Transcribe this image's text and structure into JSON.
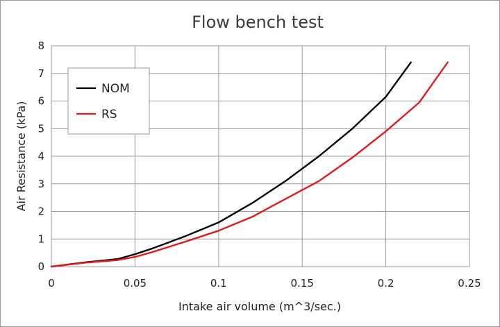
{
  "chart_data": {
    "type": "line",
    "title": "Flow bench test",
    "xlabel": "Intake air volume (m^3/sec.)",
    "ylabel": "Air Resistance (kPa)",
    "xlim": [
      0,
      0.25
    ],
    "ylim": [
      0,
      8
    ],
    "xticks": [
      0,
      0.05,
      0.1,
      0.15,
      0.2,
      0.25
    ],
    "xtick_labels": [
      "0",
      "0.05",
      "0.1",
      "0.15",
      "0.2",
      "0.25"
    ],
    "yticks": [
      0,
      1,
      2,
      3,
      4,
      5,
      6,
      7,
      8
    ],
    "ytick_labels": [
      "0",
      "1",
      "2",
      "3",
      "4",
      "5",
      "6",
      "7",
      "8"
    ],
    "grid": true,
    "legend_position": "top-left",
    "series": [
      {
        "name": "NOM",
        "color": "#000000",
        "x": [
          0,
          0.02,
          0.04,
          0.05,
          0.06,
          0.08,
          0.1,
          0.12,
          0.14,
          0.16,
          0.18,
          0.2,
          0.215
        ],
        "y": [
          0,
          0.15,
          0.28,
          0.45,
          0.65,
          1.1,
          1.6,
          2.3,
          3.1,
          4.0,
          5.0,
          6.15,
          7.4
        ]
      },
      {
        "name": "RS",
        "color": "#e31a1c",
        "x": [
          0,
          0.02,
          0.04,
          0.05,
          0.06,
          0.08,
          0.1,
          0.12,
          0.14,
          0.16,
          0.18,
          0.2,
          0.22,
          0.237
        ],
        "y": [
          0,
          0.14,
          0.24,
          0.35,
          0.52,
          0.9,
          1.3,
          1.8,
          2.45,
          3.1,
          3.95,
          4.9,
          5.95,
          7.4
        ]
      }
    ]
  }
}
